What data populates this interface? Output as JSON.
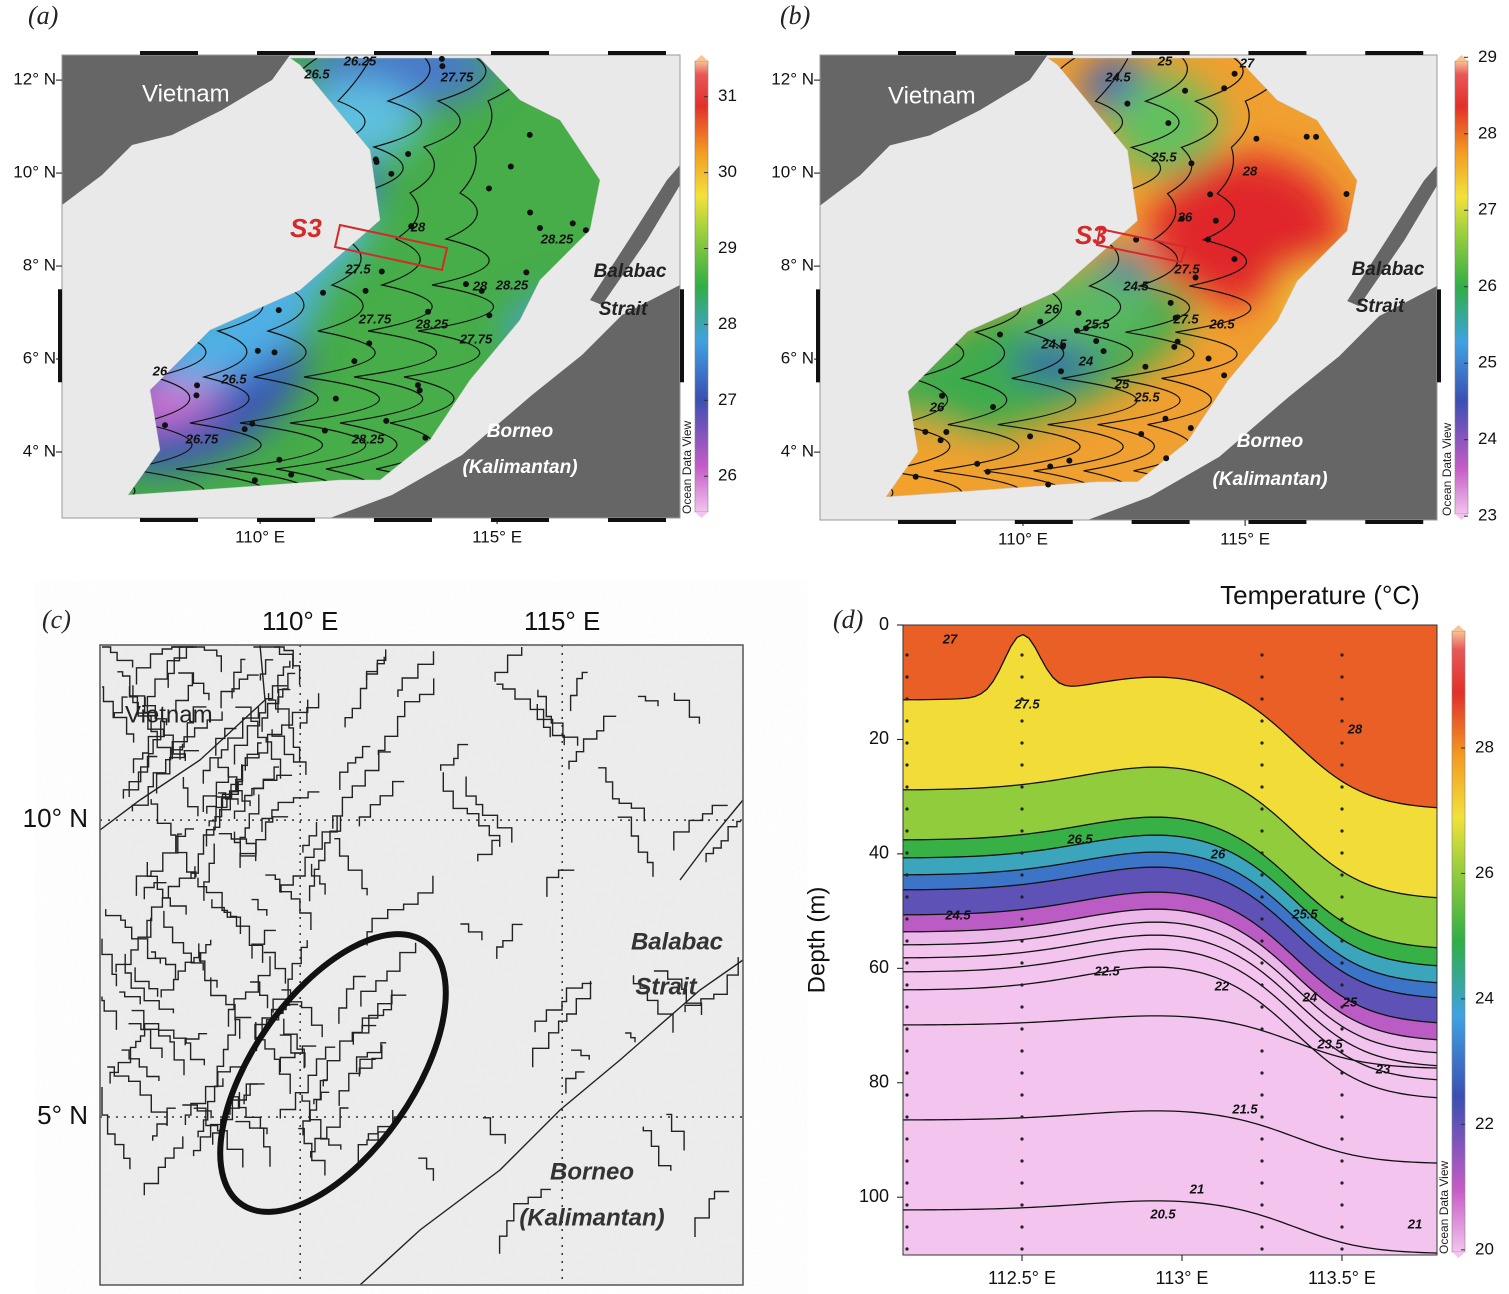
{
  "panels": [
    {
      "label": "(a)",
      "type": "map",
      "xlim": [
        105.82,
        118.86
      ],
      "ylim": [
        2.58,
        12.54
      ],
      "xticks": [
        {
          "value": 110,
          "label": "110° E"
        },
        {
          "value": 115,
          "label": "115° E"
        }
      ],
      "yticks": [
        {
          "value": 12,
          "label": "12° N"
        },
        {
          "value": 10,
          "label": "10° N"
        },
        {
          "value": 8,
          "label": "8° N"
        },
        {
          "value": 6,
          "label": "6° N"
        },
        {
          "value": 4,
          "label": "4° N"
        }
      ],
      "places": [
        "Vietnam",
        "Balabac",
        "Strait",
        "Borneo",
        "(Kalimantan)"
      ],
      "section": "S3",
      "colorbar": {
        "lim": [
          25.45,
          31.55
        ],
        "ticks": [
          26,
          27,
          28,
          29,
          30,
          31
        ],
        "credit": "Ocean Data View"
      },
      "contour_labels": [
        26.25,
        26.5,
        27.75,
        28,
        27.5,
        27.75,
        28.25,
        28.25,
        28,
        28.25,
        27.75,
        26,
        26.5,
        26.75,
        28.25
      ]
    },
    {
      "label": "(b)",
      "type": "map",
      "xlim": [
        105.43,
        119.32
      ],
      "ylim": [
        2.54,
        12.54
      ],
      "xticks": [
        {
          "value": 110,
          "label": "110° E"
        },
        {
          "value": 115,
          "label": "115° E"
        }
      ],
      "yticks": [
        {
          "value": 12,
          "label": "12° N"
        },
        {
          "value": 10,
          "label": "10° N"
        },
        {
          "value": 8,
          "label": "8° N"
        },
        {
          "value": 6,
          "label": "6° N"
        },
        {
          "value": 4,
          "label": "4° N"
        }
      ],
      "places": [
        "Vietnam",
        "Balabac",
        "Strait",
        "Borneo",
        "(Kalimantan)"
      ],
      "section": "S3",
      "colorbar": {
        "lim": [
          22.95,
          29.03
        ],
        "ticks": [
          23,
          24,
          25,
          26,
          27,
          28,
          29
        ],
        "credit": "Ocean Data View"
      },
      "contour_labels": [
        24.5,
        25,
        27,
        25.5,
        28,
        26,
        24.5,
        27.5,
        26,
        25.5,
        24.5,
        24,
        25,
        25.5,
        26,
        27.5,
        26.5
      ]
    },
    {
      "label": "(c)",
      "type": "lineament",
      "xlim": [
        106.18,
        118.45
      ],
      "ylim": [
        2.17,
        12.95
      ],
      "xticks": [
        {
          "value": 110,
          "label": "110° E"
        },
        {
          "value": 115,
          "label": "115° E"
        }
      ],
      "yticks": [
        {
          "value": 10,
          "label": "10° N"
        },
        {
          "value": 5,
          "label": "5° N"
        }
      ],
      "places": [
        "Vietnam",
        "Balabac",
        "Strait",
        "Borneo",
        "(Kalimantan)"
      ]
    },
    {
      "label": "(d)",
      "type": "section",
      "title": "Temperature (°C)",
      "ylabel": "Depth (m)",
      "xlim": [
        112.128,
        113.797
      ],
      "ylim": [
        0,
        110.1
      ],
      "y_inverted": true,
      "xticks": [
        {
          "value": 112.5,
          "label": "112.5° E"
        },
        {
          "value": 113,
          "label": "113° E"
        },
        {
          "value": 113.5,
          "label": "113.5° E"
        }
      ],
      "yticks": [
        0,
        20,
        40,
        60,
        80,
        100
      ],
      "colorbar": {
        "lim": [
          19.87,
          29.96
        ],
        "ticks": [
          20,
          22,
          24,
          26,
          28
        ],
        "credit": "Ocean Data View"
      },
      "contour_labels": [
        27,
        27.5,
        28,
        26.5,
        26,
        24.5,
        25.5,
        22.5,
        22,
        24,
        25,
        23.5,
        23,
        21.5,
        21,
        20.5,
        21
      ]
    }
  ]
}
